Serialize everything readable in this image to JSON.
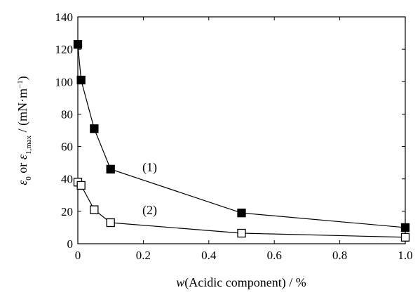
{
  "chart_data": {
    "type": "line",
    "xlabel_var": "w",
    "xlabel_rest": "(Acidic component) / %",
    "ylabel": {
      "sym1": "ε",
      "sub1": "0",
      "mid": " or ",
      "sym2": "ε",
      "sub2": "1,max",
      "unit": " / (mN·m",
      "sup": "−1",
      "close": ")"
    },
    "xlim": [
      0,
      1.0
    ],
    "ylim": [
      0,
      140
    ],
    "xticks": [
      "0",
      "0.2",
      "0.4",
      "0.6",
      "0.8",
      "1.0"
    ],
    "xtick_values": [
      0,
      0.2,
      0.4,
      0.6,
      0.8,
      1.0
    ],
    "yticks": [
      "0",
      "20",
      "40",
      "60",
      "80",
      "100",
      "120",
      "140"
    ],
    "ytick_values": [
      0,
      20,
      40,
      60,
      80,
      100,
      120,
      140
    ],
    "grid": false,
    "series": [
      {
        "name": "(1)",
        "marker": "filled-square",
        "x": [
          0,
          0.01,
          0.05,
          0.1,
          0.5,
          1.0
        ],
        "y": [
          123,
          101,
          71,
          46,
          19,
          10
        ]
      },
      {
        "name": "(2)",
        "marker": "open-square",
        "x": [
          0,
          0.01,
          0.05,
          0.1,
          0.5,
          1.0
        ],
        "y": [
          38,
          36,
          21,
          13,
          6.5,
          4
        ]
      }
    ]
  }
}
